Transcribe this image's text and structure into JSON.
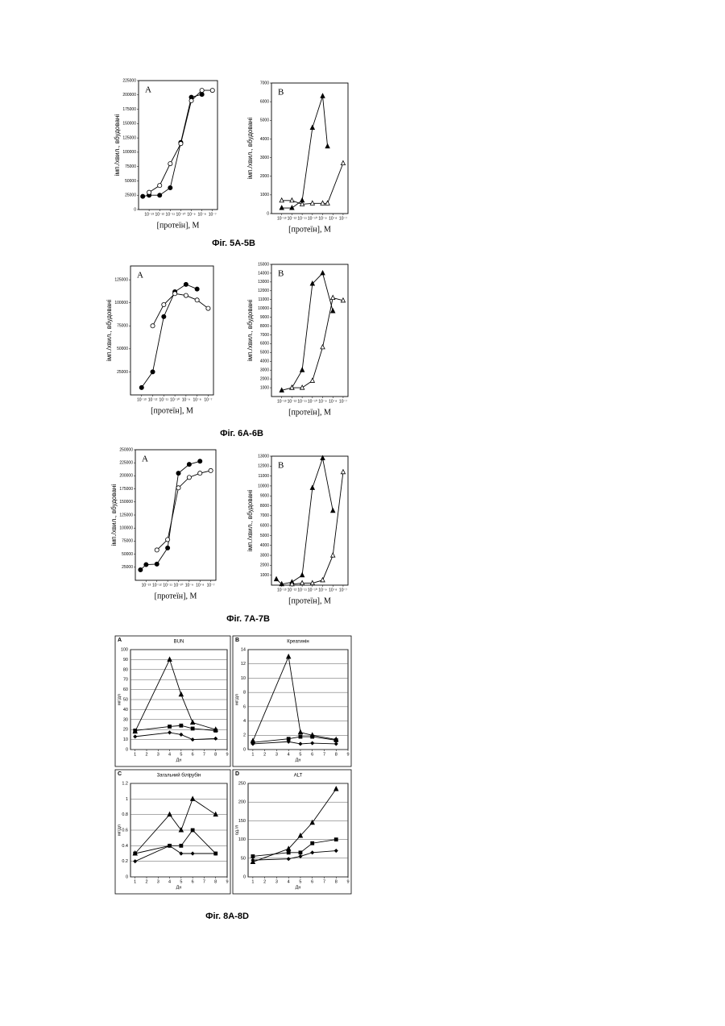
{
  "captions": [
    "Фіг. 5A-5B",
    "Фіг. 6A-6B",
    "Фіг. 7A-7B",
    "Фіг. 8A-8D"
  ],
  "chart_data": [
    {
      "type": "line",
      "panel": "A",
      "xscale": "log",
      "ylabel": "імп./хвил., вбудовані",
      "xlabel": "[протеїн], М",
      "xlim": [
        1e-14,
        3e-07
      ],
      "ylim": [
        0,
        225000
      ],
      "xticks": [
        {
          "value": 1e-13,
          "label": "10⁻¹³"
        },
        {
          "value": 1e-12,
          "label": "10⁻¹²"
        },
        {
          "value": 1e-11,
          "label": "10⁻¹¹"
        },
        {
          "value": 1e-10,
          "label": "10⁻¹⁰"
        },
        {
          "value": 1e-09,
          "label": "10⁻⁹"
        },
        {
          "value": 1e-08,
          "label": "10⁻⁸"
        },
        {
          "value": 1e-07,
          "label": "10⁻⁷"
        }
      ],
      "yticks": [
        0,
        25000,
        50000,
        75000,
        100000,
        125000,
        150000,
        175000,
        200000,
        225000
      ],
      "series": [
        {
          "marker": "circle",
          "filled": true,
          "color": "#000000",
          "x": [
            2.5e-14,
            1e-13,
            1e-12,
            1e-11,
            1e-10,
            1e-09,
            1e-08
          ],
          "values": [
            23000,
            25000,
            25000,
            38000,
            117000,
            196000,
            201000
          ]
        },
        {
          "marker": "circle",
          "filled": false,
          "color": "#000000",
          "x": [
            1e-13,
            1e-12,
            1e-11,
            1e-10,
            1e-09,
            1e-08,
            1e-07
          ],
          "values": [
            30000,
            42000,
            80000,
            115000,
            190000,
            208000,
            208000
          ]
        }
      ]
    },
    {
      "type": "line",
      "panel": "B",
      "xscale": "log",
      "ylabel": "імп./хвил., вбудовані",
      "xlabel": "[протеїн], М",
      "xlim": [
        1e-14,
        3e-07
      ],
      "ylim": [
        0,
        7000
      ],
      "xticks": [
        {
          "value": 1e-13,
          "label": "10⁻¹³"
        },
        {
          "value": 1e-12,
          "label": "10⁻¹²"
        },
        {
          "value": 1e-11,
          "label": "10⁻¹¹"
        },
        {
          "value": 1e-10,
          "label": "10⁻¹⁰"
        },
        {
          "value": 1e-09,
          "label": "10⁻⁹"
        },
        {
          "value": 1e-08,
          "label": "10⁻⁸"
        },
        {
          "value": 1e-07,
          "label": "10⁻⁷"
        }
      ],
      "yticks": [
        0,
        1000,
        2000,
        3000,
        4000,
        5000,
        6000,
        7000
      ],
      "series": [
        {
          "marker": "triangle",
          "filled": true,
          "color": "#000000",
          "x": [
            1e-13,
            1e-12,
            1e-11,
            1e-10,
            1e-09,
            3e-09
          ],
          "values": [
            300,
            300,
            700,
            4600,
            6300,
            3600
          ]
        },
        {
          "marker": "triangle",
          "filled": false,
          "color": "#000000",
          "x": [
            1e-13,
            1e-12,
            1e-11,
            1e-10,
            1e-09,
            3e-09,
            1e-07
          ],
          "values": [
            700,
            700,
            500,
            550,
            550,
            550,
            2700
          ]
        }
      ]
    },
    {
      "type": "line",
      "panel": "A",
      "xscale": "log",
      "ylabel": "імп./хвил., вбудовані",
      "xlabel": "[протеїн], М",
      "xlim": [
        1e-14,
        3e-07
      ],
      "ylim": [
        0,
        140000
      ],
      "xticks": [
        {
          "value": 1e-13,
          "label": "10⁻¹³"
        },
        {
          "value": 1e-12,
          "label": "10⁻¹²"
        },
        {
          "value": 1e-11,
          "label": "10⁻¹¹"
        },
        {
          "value": 1e-10,
          "label": "10⁻¹⁰"
        },
        {
          "value": 1e-09,
          "label": "10⁻⁹"
        },
        {
          "value": 1e-08,
          "label": "10⁻⁸"
        },
        {
          "value": 1e-07,
          "label": "10⁻⁷"
        }
      ],
      "yticks": [
        25000,
        50000,
        75000,
        100000,
        125000
      ],
      "series": [
        {
          "marker": "circle",
          "filled": true,
          "color": "#000000",
          "x": [
            1e-13,
            1e-12,
            1e-11,
            1e-10,
            1e-09,
            1e-08
          ],
          "values": [
            8000,
            25000,
            85000,
            112000,
            120000,
            115000
          ]
        },
        {
          "marker": "circle",
          "filled": false,
          "color": "#000000",
          "x": [
            1e-12,
            1e-11,
            1e-10,
            1e-09,
            1e-08,
            1e-07
          ],
          "values": [
            75000,
            98000,
            110000,
            108000,
            103000,
            94000
          ]
        }
      ]
    },
    {
      "type": "line",
      "panel": "B",
      "xscale": "log",
      "ylabel": "імп./хвил., вбудовані",
      "xlabel": "[протеїн], М",
      "xlim": [
        1e-14,
        3e-07
      ],
      "ylim": [
        0,
        15000
      ],
      "xticks": [
        {
          "value": 1e-13,
          "label": "10⁻¹³"
        },
        {
          "value": 1e-12,
          "label": "10⁻¹²"
        },
        {
          "value": 1e-11,
          "label": "10⁻¹¹"
        },
        {
          "value": 1e-10,
          "label": "10⁻¹⁰"
        },
        {
          "value": 1e-09,
          "label": "10⁻⁹"
        },
        {
          "value": 1e-08,
          "label": "10⁻⁸"
        },
        {
          "value": 1e-07,
          "label": "10⁻⁷"
        }
      ],
      "yticks": [
        1000,
        2000,
        3000,
        4000,
        5000,
        6000,
        7000,
        8000,
        9000,
        10000,
        11000,
        12000,
        13000,
        14000,
        15000
      ],
      "series": [
        {
          "marker": "triangle",
          "filled": true,
          "color": "#000000",
          "x": [
            1e-13,
            1e-12,
            1e-11,
            1e-10,
            1e-09,
            1e-08
          ],
          "values": [
            700,
            1000,
            3000,
            12800,
            14000,
            9700
          ]
        },
        {
          "marker": "triangle",
          "filled": false,
          "color": "#000000",
          "x": [
            1e-12,
            1e-11,
            1e-10,
            1e-09,
            1e-08,
            1e-07
          ],
          "values": [
            1000,
            1000,
            1800,
            5600,
            11200,
            10900
          ]
        }
      ]
    },
    {
      "type": "line",
      "panel": "A",
      "xscale": "log",
      "ylabel": "імп./хвил., вбудовані",
      "xlabel": "[протеїн], М",
      "xlim": [
        1e-14,
        3e-07
      ],
      "ylim": [
        0,
        250000
      ],
      "xticks": [
        {
          "value": 1e-13,
          "label": "10⁻¹³"
        },
        {
          "value": 1e-12,
          "label": "10⁻¹²"
        },
        {
          "value": 1e-11,
          "label": "10⁻¹¹"
        },
        {
          "value": 1e-10,
          "label": "10⁻¹⁰"
        },
        {
          "value": 1e-09,
          "label": "10⁻⁹"
        },
        {
          "value": 1e-08,
          "label": "10⁻⁸"
        },
        {
          "value": 1e-07,
          "label": "10⁻⁷"
        }
      ],
      "yticks": [
        25000,
        50000,
        75000,
        100000,
        125000,
        150000,
        175000,
        200000,
        225000,
        250000
      ],
      "series": [
        {
          "marker": "circle",
          "filled": true,
          "color": "#000000",
          "x": [
            3e-14,
            1e-13,
            1e-12,
            1e-11,
            1e-10,
            1e-09,
            1e-08
          ],
          "values": [
            20000,
            30000,
            31000,
            62000,
            205000,
            222000,
            228000
          ]
        },
        {
          "marker": "circle",
          "filled": false,
          "color": "#000000",
          "x": [
            1e-12,
            1e-11,
            1e-10,
            1e-09,
            1e-08,
            1e-07
          ],
          "values": [
            58000,
            78000,
            177000,
            197000,
            205000,
            210000
          ]
        }
      ]
    },
    {
      "type": "line",
      "panel": "B",
      "xscale": "log",
      "ylabel": "імп./хвил., вбудовані",
      "xlabel": "[протеїн], М",
      "xlim": [
        1e-14,
        3e-07
      ],
      "ylim": [
        0,
        13000
      ],
      "xticks": [
        {
          "value": 1e-13,
          "label": "10⁻¹³"
        },
        {
          "value": 1e-12,
          "label": "10⁻¹²"
        },
        {
          "value": 1e-11,
          "label": "10⁻¹¹"
        },
        {
          "value": 1e-10,
          "label": "10⁻¹⁰"
        },
        {
          "value": 1e-09,
          "label": "10⁻⁹"
        },
        {
          "value": 1e-08,
          "label": "10⁻⁸"
        },
        {
          "value": 1e-07,
          "label": "10⁻⁷"
        }
      ],
      "yticks": [
        1000,
        2000,
        3000,
        4000,
        5000,
        6000,
        7000,
        8000,
        9000,
        10000,
        11000,
        12000,
        13000
      ],
      "series": [
        {
          "marker": "triangle",
          "filled": true,
          "color": "#000000",
          "x": [
            3e-14,
            1e-13,
            1e-12,
            1e-11,
            1e-10,
            1e-09,
            1e-08
          ],
          "values": [
            600,
            100,
            300,
            1000,
            9800,
            12800,
            7500
          ]
        },
        {
          "marker": "triangle",
          "filled": false,
          "color": "#000000",
          "x": [
            1e-12,
            1e-11,
            1e-10,
            1e-09,
            1e-08,
            1e-07
          ],
          "values": [
            100,
            200,
            200,
            500,
            3000,
            11400
          ]
        }
      ]
    },
    {
      "type": "line",
      "panel": "A",
      "title": "BUN",
      "ylabel": "мг/дл",
      "xlabel": "Дн",
      "grid": true,
      "xlim": [
        0.6,
        9
      ],
      "ylim": [
        0,
        100
      ],
      "xticks": [
        1,
        2,
        3,
        4,
        5,
        6,
        7,
        8,
        9
      ],
      "yticks": [
        0,
        10,
        20,
        30,
        40,
        50,
        60,
        70,
        80,
        90,
        100
      ],
      "series": [
        {
          "marker": "triangle",
          "filled": true,
          "color": "#000000",
          "x": [
            1,
            4,
            5,
            6,
            8
          ],
          "values": [
            18,
            90,
            55,
            27,
            20
          ]
        },
        {
          "marker": "square",
          "filled": true,
          "color": "#000000",
          "x": [
            1,
            4,
            5,
            6,
            8
          ],
          "values": [
            19,
            23,
            24,
            21,
            19
          ]
        },
        {
          "marker": "diamond",
          "filled": true,
          "color": "#000000",
          "x": [
            1,
            4,
            5,
            6,
            8
          ],
          "values": [
            13,
            17,
            15,
            10,
            11
          ]
        }
      ]
    },
    {
      "type": "line",
      "panel": "B",
      "title": "Креатинін",
      "ylabel": "мг/дл",
      "xlabel": "Дн",
      "grid": true,
      "xlim": [
        0.6,
        9
      ],
      "ylim": [
        0,
        14
      ],
      "xticks": [
        1,
        2,
        3,
        4,
        5,
        6,
        7,
        8,
        9
      ],
      "yticks": [
        0,
        2,
        4,
        6,
        8,
        10,
        12,
        14
      ],
      "series": [
        {
          "marker": "triangle",
          "filled": true,
          "color": "#000000",
          "x": [
            1,
            4,
            5,
            6,
            8
          ],
          "values": [
            1.2,
            13,
            2.4,
            2,
            1.4
          ]
        },
        {
          "marker": "square",
          "filled": true,
          "color": "#000000",
          "x": [
            1,
            4,
            5,
            6,
            8
          ],
          "values": [
            1,
            1.5,
            1.8,
            1.8,
            1.3
          ]
        },
        {
          "marker": "diamond",
          "filled": true,
          "color": "#000000",
          "x": [
            1,
            4,
            5,
            6,
            8
          ],
          "values": [
            0.8,
            1.1,
            0.8,
            0.9,
            0.8
          ]
        }
      ]
    },
    {
      "type": "line",
      "panel": "C",
      "title": "Загальний білірубін",
      "ylabel": "мг/дл",
      "xlabel": "Дн",
      "grid": true,
      "xlim": [
        0.6,
        9
      ],
      "ylim": [
        0,
        1.2
      ],
      "xticks": [
        1,
        2,
        3,
        4,
        5,
        6,
        7,
        8,
        9
      ],
      "yticks": [
        0,
        0.2,
        0.4,
        0.6,
        0.8,
        1,
        1.2
      ],
      "series": [
        {
          "marker": "triangle",
          "filled": true,
          "color": "#000000",
          "x": [
            1,
            4,
            5,
            6,
            8
          ],
          "values": [
            0.3,
            0.8,
            0.6,
            1.0,
            0.8
          ]
        },
        {
          "marker": "square",
          "filled": true,
          "color": "#000000",
          "x": [
            1,
            4,
            5,
            6,
            8
          ],
          "values": [
            0.3,
            0.4,
            0.4,
            0.6,
            0.3
          ]
        },
        {
          "marker": "diamond",
          "filled": true,
          "color": "#000000",
          "x": [
            1,
            4,
            5,
            6,
            8
          ],
          "values": [
            0.2,
            0.4,
            0.3,
            0.3,
            0.3
          ]
        }
      ]
    },
    {
      "type": "line",
      "panel": "D",
      "title": "ALT",
      "ylabel": "од./л",
      "xlabel": "Дн",
      "grid": true,
      "xlim": [
        0.6,
        9
      ],
      "ylim": [
        0,
        250
      ],
      "xticks": [
        1,
        2,
        3,
        4,
        5,
        6,
        7,
        8,
        9
      ],
      "yticks": [
        0,
        50,
        100,
        150,
        200,
        250
      ],
      "series": [
        {
          "marker": "triangle",
          "filled": true,
          "color": "#000000",
          "x": [
            1,
            4,
            5,
            6,
            8
          ],
          "values": [
            40,
            75,
            110,
            145,
            235
          ]
        },
        {
          "marker": "square",
          "filled": true,
          "color": "#000000",
          "x": [
            1,
            4,
            5,
            6,
            8
          ],
          "values": [
            55,
            65,
            65,
            90,
            100
          ]
        },
        {
          "marker": "diamond",
          "filled": true,
          "color": "#000000",
          "x": [
            1,
            4,
            5,
            6,
            8
          ],
          "values": [
            45,
            48,
            55,
            65,
            70
          ]
        }
      ]
    }
  ]
}
